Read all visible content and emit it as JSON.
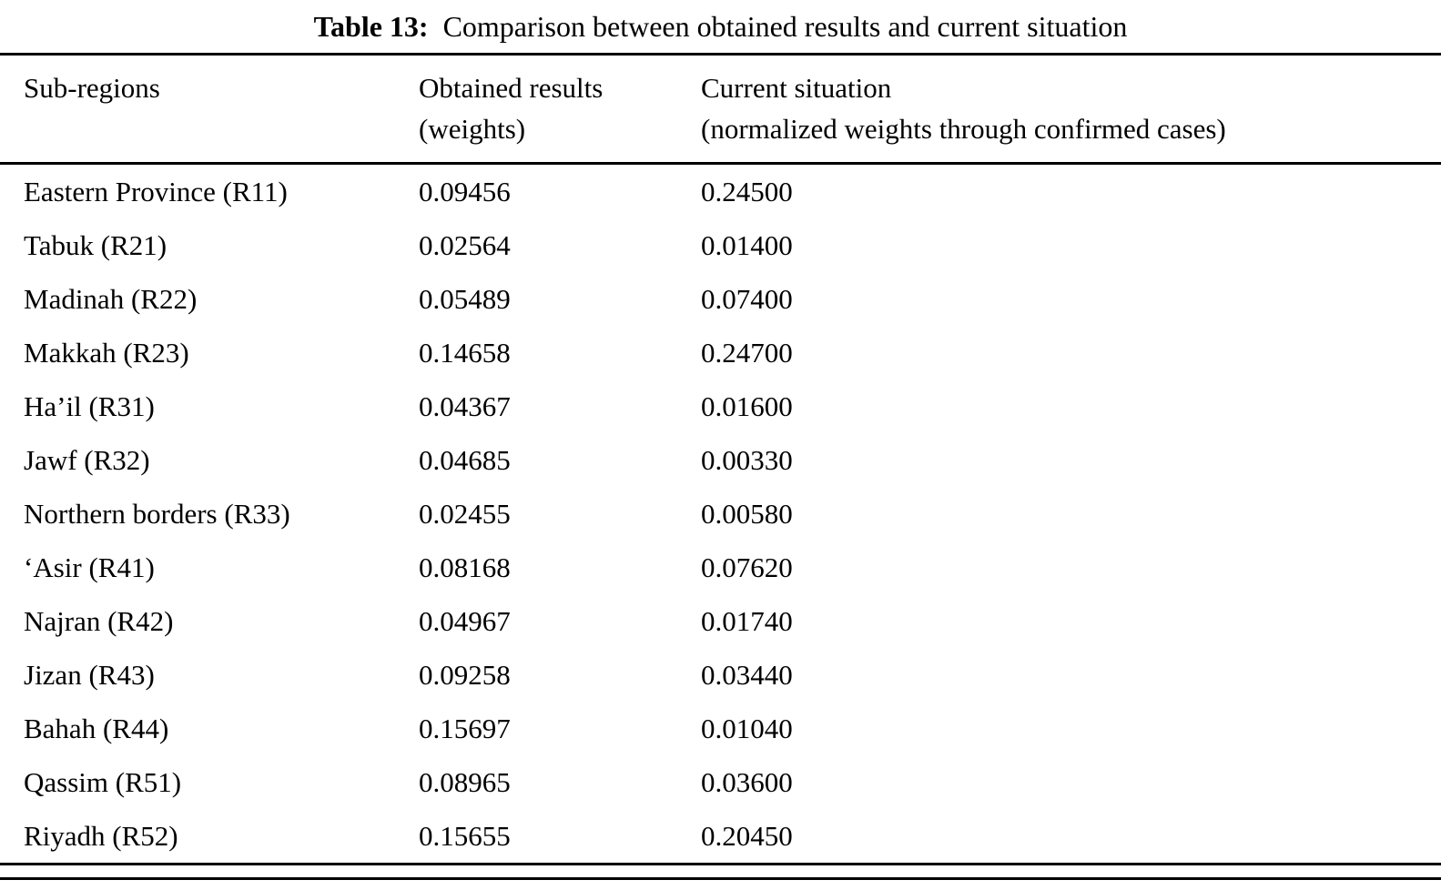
{
  "caption": {
    "label": "Table 13:",
    "text": "  Comparison between obtained results and current situation"
  },
  "table": {
    "columns": [
      {
        "title": "Sub-regions",
        "subtitle": ""
      },
      {
        "title": "Obtained results",
        "subtitle": "(weights)"
      },
      {
        "title": "Current situation",
        "subtitle": "(normalized weights through confirmed cases)"
      }
    ],
    "rows": [
      {
        "region": "Eastern Province (R11)",
        "obtained": "0.09456",
        "current": "0.24500"
      },
      {
        "region": "Tabuk (R21)",
        "obtained": "0.02564",
        "current": "0.01400"
      },
      {
        "region": "Madinah (R22)",
        "obtained": "0.05489",
        "current": "0.07400"
      },
      {
        "region": "Makkah (R23)",
        "obtained": "0.14658",
        "current": "0.24700"
      },
      {
        "region": "Ha’il (R31)",
        "obtained": "0.04367",
        "current": "0.01600"
      },
      {
        "region": "Jawf (R32)",
        "obtained": "0.04685",
        "current": "0.00330"
      },
      {
        "region": "Northern borders (R33)",
        "obtained": "0.02455",
        "current": "0.00580"
      },
      {
        "region": "‘Asir (R41)",
        "obtained": "0.08168",
        "current": "0.07620"
      },
      {
        "region": "Najran (R42)",
        "obtained": "0.04967",
        "current": "0.01740"
      },
      {
        "region": "Jizan (R43)",
        "obtained": "0.09258",
        "current": "0.03440"
      },
      {
        "region": "Bahah (R44)",
        "obtained": "0.15697",
        "current": "0.01040"
      },
      {
        "region": "Qassim (R51)",
        "obtained": "0.08965",
        "current": "0.03600"
      },
      {
        "region": "Riyadh (R52)",
        "obtained": "0.15655",
        "current": "0.20450"
      }
    ]
  }
}
